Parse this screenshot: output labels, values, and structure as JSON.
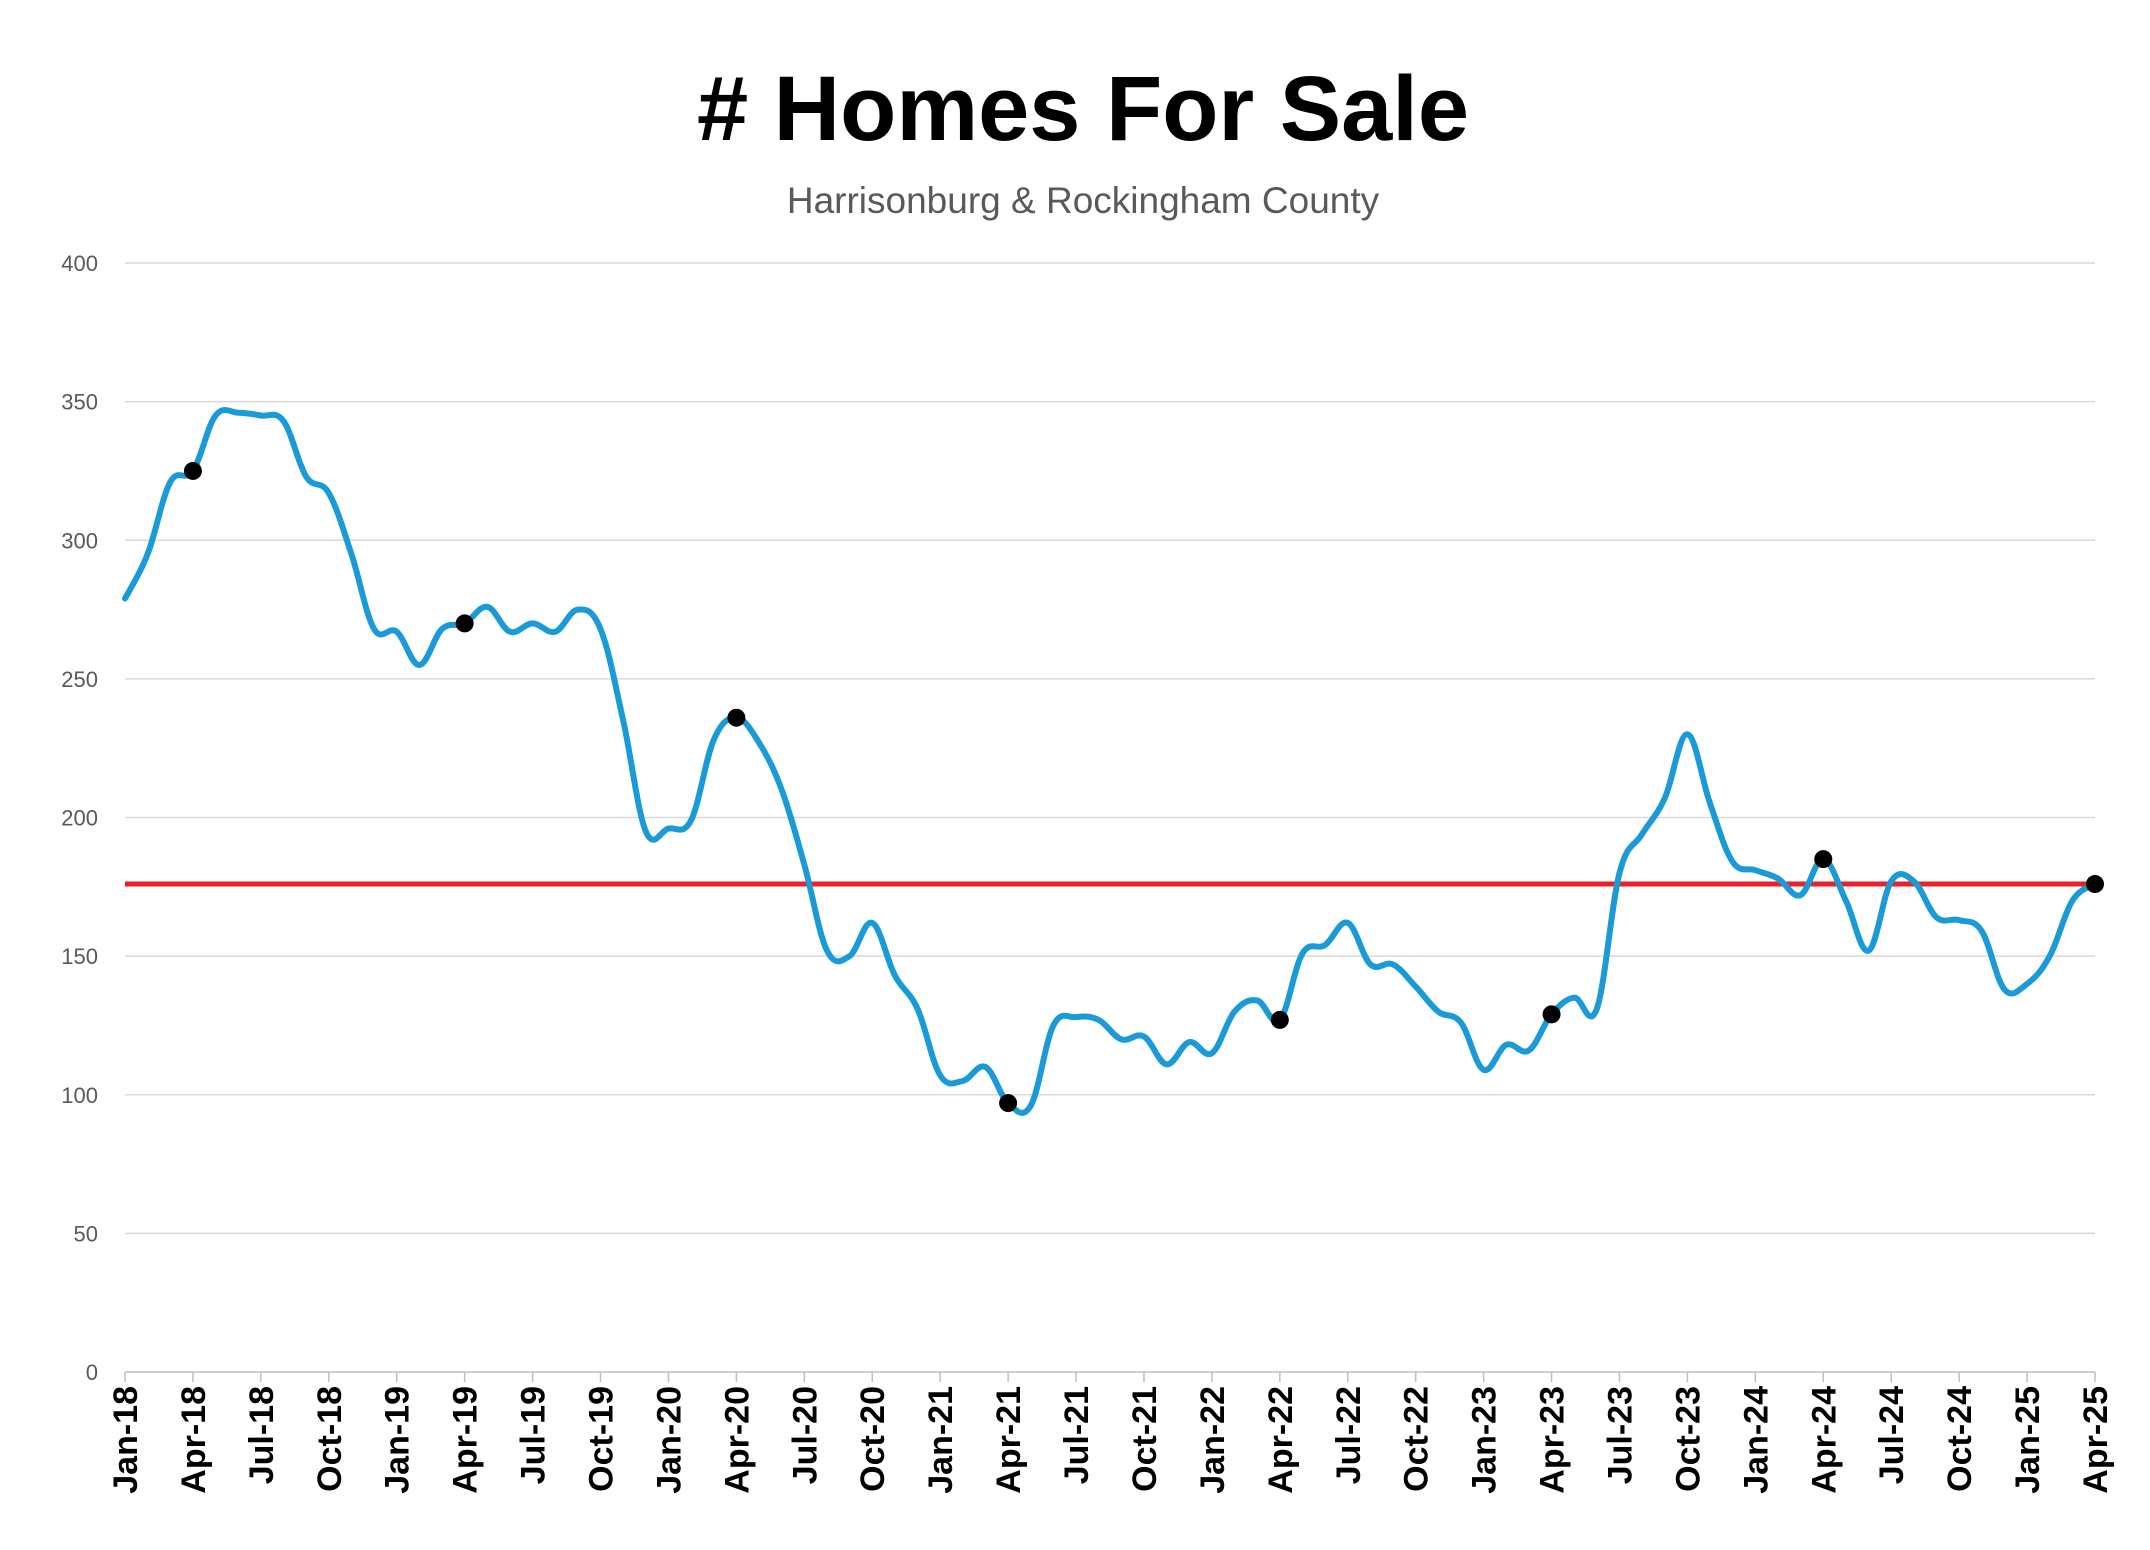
{
  "chart_data": {
    "type": "line",
    "title": "# Homes For Sale",
    "subtitle": "Harrisonburg & Rockingham County",
    "ylim": [
      0,
      400
    ],
    "yticks": [
      0,
      50,
      100,
      150,
      200,
      250,
      300,
      350,
      400
    ],
    "xlim": [
      "2018-01",
      "2025-04"
    ],
    "xtick_labels": [
      "Jan-18",
      "Apr-18",
      "Jul-18",
      "Oct-18",
      "Jan-19",
      "Apr-19",
      "Jul-19",
      "Oct-19",
      "Jan-20",
      "Apr-20",
      "Jul-20",
      "Oct-20",
      "Jan-21",
      "Apr-21",
      "Jul-21",
      "Oct-21",
      "Jan-22",
      "Apr-22",
      "Jul-22",
      "Oct-22",
      "Jan-23",
      "Apr-23",
      "Jul-23",
      "Oct-23",
      "Jan-24",
      "Apr-24",
      "Jul-24",
      "Oct-24",
      "Jan-25",
      "Apr-25"
    ],
    "grid": true,
    "legend": "none",
    "series": [
      {
        "color": "#1A9BD7",
        "points": [
          [
            "2018-01",
            279
          ],
          [
            "2018-02",
            295
          ],
          [
            "2018-03",
            321
          ],
          [
            "2018-04",
            325
          ],
          [
            "2018-05",
            345
          ],
          [
            "2018-06",
            346
          ],
          [
            "2018-07",
            345
          ],
          [
            "2018-08",
            343
          ],
          [
            "2018-09",
            323
          ],
          [
            "2018-10",
            317
          ],
          [
            "2018-11",
            295
          ],
          [
            "2018-12",
            268
          ],
          [
            "2019-01",
            267
          ],
          [
            "2019-02",
            255
          ],
          [
            "2019-03",
            268
          ],
          [
            "2019-04",
            270
          ],
          [
            "2019-05",
            276
          ],
          [
            "2019-06",
            267
          ],
          [
            "2019-07",
            270
          ],
          [
            "2019-08",
            267
          ],
          [
            "2019-09",
            275
          ],
          [
            "2019-10",
            268
          ],
          [
            "2019-11",
            235
          ],
          [
            "2019-12",
            195
          ],
          [
            "2020-01",
            196
          ],
          [
            "2020-02",
            199
          ],
          [
            "2020-03",
            228
          ],
          [
            "2020-04",
            236
          ],
          [
            "2020-05",
            227
          ],
          [
            "2020-06",
            210
          ],
          [
            "2020-07",
            183
          ],
          [
            "2020-08",
            152
          ],
          [
            "2020-09",
            150
          ],
          [
            "2020-10",
            162
          ],
          [
            "2020-11",
            143
          ],
          [
            "2020-12",
            131
          ],
          [
            "2021-01",
            107
          ],
          [
            "2021-02",
            105
          ],
          [
            "2021-03",
            110
          ],
          [
            "2021-04",
            97
          ],
          [
            "2021-05",
            96
          ],
          [
            "2021-06",
            125
          ],
          [
            "2021-07",
            128
          ],
          [
            "2021-08",
            127
          ],
          [
            "2021-09",
            120
          ],
          [
            "2021-10",
            121
          ],
          [
            "2021-11",
            111
          ],
          [
            "2021-12",
            119
          ],
          [
            "2022-01",
            115
          ],
          [
            "2022-02",
            130
          ],
          [
            "2022-03",
            134
          ],
          [
            "2022-04",
            127
          ],
          [
            "2022-05",
            151
          ],
          [
            "2022-06",
            154
          ],
          [
            "2022-07",
            162
          ],
          [
            "2022-08",
            147
          ],
          [
            "2022-09",
            147
          ],
          [
            "2022-10",
            139
          ],
          [
            "2022-11",
            130
          ],
          [
            "2022-12",
            126
          ],
          [
            "2023-01",
            109
          ],
          [
            "2023-02",
            118
          ],
          [
            "2023-03",
            116
          ],
          [
            "2023-04",
            129
          ],
          [
            "2023-05",
            135
          ],
          [
            "2023-06",
            131
          ],
          [
            "2023-07",
            180
          ],
          [
            "2023-08",
            194
          ],
          [
            "2023-09",
            207
          ],
          [
            "2023-10",
            230
          ],
          [
            "2023-11",
            205
          ],
          [
            "2023-12",
            184
          ],
          [
            "2024-01",
            181
          ],
          [
            "2024-02",
            178
          ],
          [
            "2024-03",
            172
          ],
          [
            "2024-04",
            185
          ],
          [
            "2024-05",
            170
          ],
          [
            "2024-06",
            152
          ],
          [
            "2024-07",
            177
          ],
          [
            "2024-08",
            177
          ],
          [
            "2024-09",
            164
          ],
          [
            "2024-10",
            163
          ],
          [
            "2024-11",
            159
          ],
          [
            "2024-12",
            138
          ],
          [
            "2025-01",
            140
          ],
          [
            "2025-02",
            150
          ],
          [
            "2025-03",
            170
          ],
          [
            "2025-04",
            176
          ]
        ]
      }
    ],
    "highlighted_points": [
      [
        "2018-04",
        325
      ],
      [
        "2019-04",
        270
      ],
      [
        "2020-04",
        236
      ],
      [
        "2021-04",
        97
      ],
      [
        "2022-04",
        127
      ],
      [
        "2023-04",
        129
      ],
      [
        "2024-04",
        185
      ],
      [
        "2025-04",
        176
      ]
    ],
    "reference_line": {
      "value": 176,
      "color": "#E8202A"
    },
    "colors": {
      "marker": "#000000",
      "grid": "#D9D9D9",
      "axis": "#BFBFBF"
    }
  }
}
